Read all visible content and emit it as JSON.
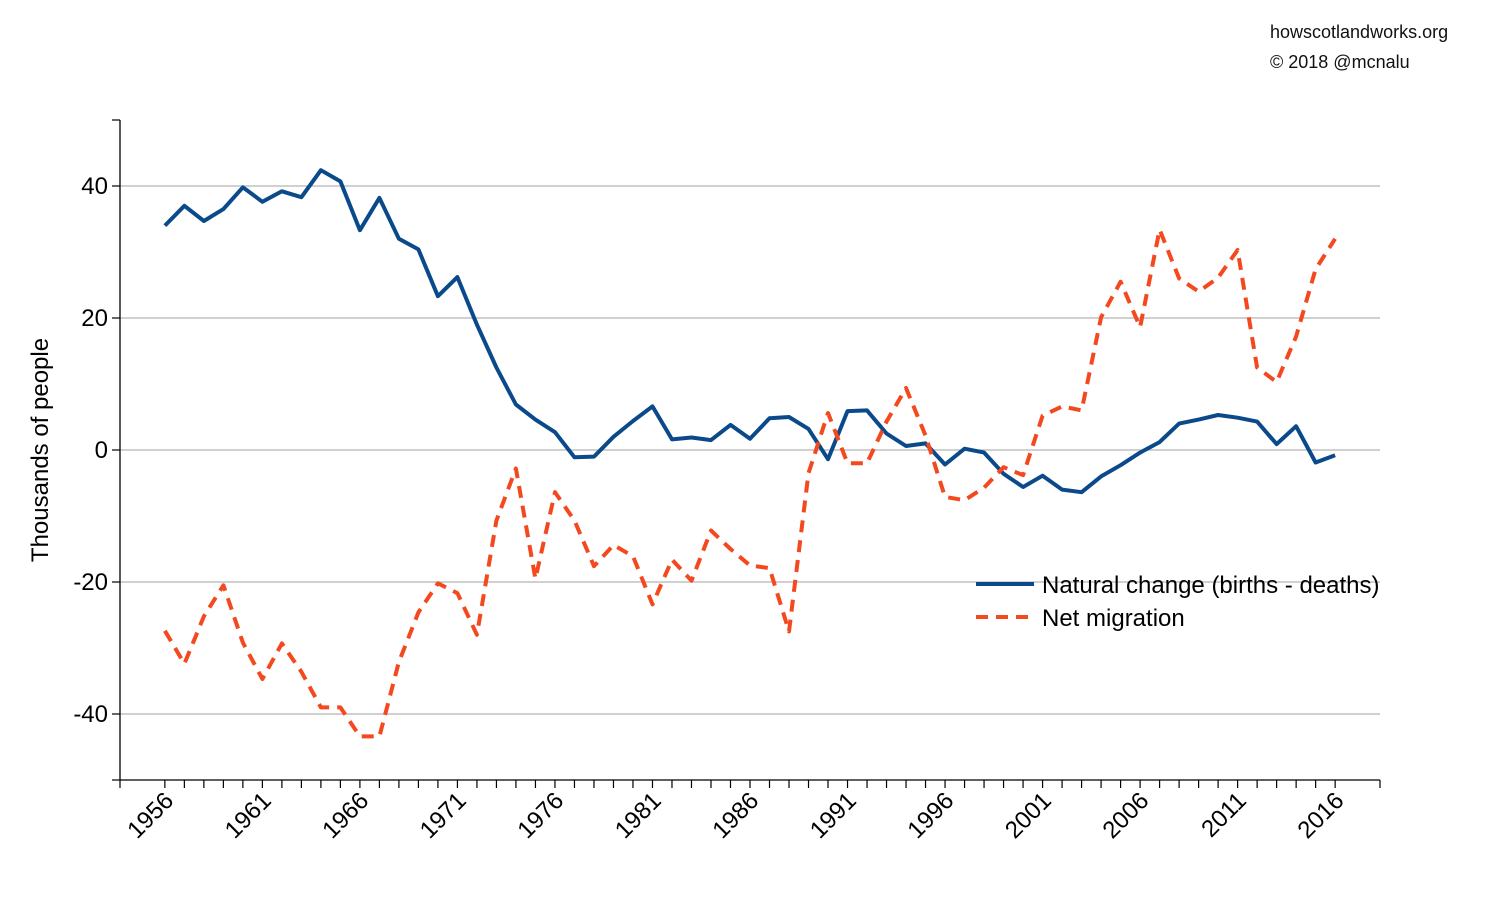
{
  "credits": {
    "site": "howscotlandworks.org",
    "copyright": "© 2018  @mcnalu"
  },
  "chart_data": {
    "type": "line",
    "title": "",
    "xlabel": "",
    "ylabel": "Thousands of people",
    "xlim": [
      1953.7,
      2018.3
    ],
    "ylim": [
      -50,
      50
    ],
    "yticks": [
      -40,
      -20,
      0,
      20,
      40
    ],
    "xticks": [
      1956,
      1961,
      1966,
      1971,
      1976,
      1981,
      1986,
      1991,
      1996,
      2001,
      2006,
      2011,
      2016
    ],
    "grid": true,
    "legend": "right",
    "x": [
      1956,
      1957,
      1958,
      1959,
      1960,
      1961,
      1962,
      1963,
      1964,
      1965,
      1966,
      1967,
      1968,
      1969,
      1970,
      1971,
      1972,
      1973,
      1974,
      1975,
      1976,
      1977,
      1978,
      1979,
      1980,
      1981,
      1982,
      1983,
      1984,
      1985,
      1986,
      1987,
      1988,
      1989,
      1990,
      1991,
      1992,
      1993,
      1994,
      1995,
      1996,
      1997,
      1998,
      1999,
      2000,
      2001,
      2002,
      2003,
      2004,
      2005,
      2006,
      2007,
      2008,
      2009,
      2010,
      2011,
      2012,
      2013,
      2014,
      2015,
      2016
    ],
    "series": [
      {
        "name": "Natural change (births - deaths)",
        "color": "#0b4a8a",
        "dash": "solid",
        "values": [
          34,
          37,
          34.7,
          36.5,
          39.8,
          37.6,
          39.2,
          38.3,
          42.4,
          40.7,
          33.3,
          38.2,
          32,
          30.4,
          23.3,
          26.2,
          19,
          12.5,
          6.9,
          4.6,
          2.7,
          -1.1,
          -1,
          2,
          4.4,
          6.6,
          1.6,
          1.9,
          1.5,
          3.8,
          1.7,
          4.8,
          5,
          3.2,
          -1.4,
          5.9,
          6,
          2.5,
          0.6,
          1,
          -2.2,
          0.2,
          -0.4,
          -3.6,
          -5.6,
          -3.9,
          -6,
          -6.4,
          -4,
          -2.3,
          -0.4,
          1.2,
          4,
          4.6,
          5.3,
          4.9,
          4.3,
          0.9,
          3.6,
          -1.9,
          -0.8
        ]
      },
      {
        "name": "Net migration",
        "color": "#f4481f",
        "dash": "dashed",
        "values": [
          -27.4,
          -32.4,
          -25.2,
          -20.5,
          -29.2,
          -34.7,
          -29.3,
          -33.6,
          -39,
          -39,
          -43.4,
          -43.4,
          -32.1,
          -24.6,
          -20.2,
          -21.7,
          -28,
          -10.7,
          -2.8,
          -19.5,
          -6.4,
          -10.7,
          -17.6,
          -14.4,
          -16.1,
          -23.4,
          -16.6,
          -19.8,
          -12.2,
          -15,
          -17.5,
          -17.9,
          -27.5,
          -3.5,
          5.6,
          -2,
          -2,
          4.3,
          9.4,
          2.2,
          -7.1,
          -7.6,
          -5.7,
          -2.6,
          -3.8,
          5.2,
          6.6,
          6,
          20.1,
          25.5,
          18.6,
          33.4,
          26,
          24,
          26.1,
          30.3,
          12.5,
          10.3,
          17.2,
          27.4,
          32
        ]
      }
    ]
  }
}
